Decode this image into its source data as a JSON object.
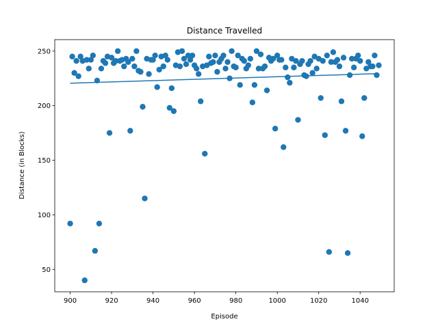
{
  "chart_data": {
    "type": "scatter",
    "title": "Distance Travelled",
    "x_label": "Episode",
    "y_label": "Distance (in Blocks)",
    "color": "#1f77b4",
    "x": [
      900,
      901,
      902,
      903,
      904,
      905,
      906,
      907,
      908,
      909,
      910,
      911,
      912,
      913,
      914,
      915,
      916,
      917,
      918,
      919,
      920,
      921,
      922,
      923,
      924,
      925,
      926,
      927,
      928,
      929,
      930,
      931,
      932,
      933,
      934,
      935,
      936,
      937,
      938,
      939,
      940,
      941,
      942,
      943,
      944,
      945,
      946,
      947,
      948,
      949,
      950,
      951,
      952,
      953,
      954,
      955,
      956,
      957,
      958,
      959,
      960,
      961,
      962,
      963,
      964,
      965,
      966,
      967,
      968,
      969,
      970,
      971,
      972,
      973,
      974,
      975,
      976,
      977,
      978,
      979,
      980,
      981,
      982,
      983,
      984,
      985,
      986,
      987,
      988,
      989,
      990,
      991,
      992,
      993,
      994,
      995,
      996,
      997,
      998,
      999,
      1000,
      1001,
      1002,
      1003,
      1004,
      1005,
      1006,
      1007,
      1008,
      1009,
      1010,
      1011,
      1012,
      1013,
      1014,
      1015,
      1016,
      1017,
      1018,
      1019,
      1020,
      1021,
      1022,
      1023,
      1024,
      1025,
      1026,
      1027,
      1028,
      1029,
      1030,
      1031,
      1032,
      1033,
      1034,
      1035,
      1036,
      1037,
      1038,
      1039,
      1040,
      1041,
      1042,
      1043,
      1044,
      1045,
      1046,
      1047,
      1048,
      1049
    ],
    "values": [
      92,
      245,
      230,
      241,
      227,
      245,
      241,
      40,
      242,
      234,
      242,
      246,
      67,
      223,
      92,
      234,
      241,
      239,
      245,
      175,
      244,
      239,
      241,
      250,
      241,
      242,
      236,
      243,
      240,
      177,
      243,
      236,
      250,
      232,
      231,
      199,
      115,
      243,
      229,
      242,
      242,
      246,
      217,
      233,
      245,
      236,
      246,
      242,
      198,
      216,
      195,
      237,
      249,
      236,
      250,
      243,
      238,
      246,
      242,
      246,
      237,
      234,
      229,
      204,
      236,
      156,
      237,
      245,
      239,
      240,
      246,
      231,
      240,
      243,
      246,
      234,
      240,
      225,
      250,
      236,
      235,
      246,
      219,
      243,
      241,
      234,
      237,
      243,
      203,
      219,
      250,
      234,
      247,
      234,
      236,
      214,
      244,
      241,
      243,
      179,
      246,
      242,
      242,
      162,
      235,
      226,
      221,
      243,
      235,
      241,
      187,
      238,
      241,
      228,
      227,
      238,
      241,
      230,
      245,
      234,
      243,
      207,
      241,
      173,
      246,
      66,
      240,
      249,
      240,
      242,
      236,
      204,
      244,
      177,
      65,
      228,
      243,
      235,
      243,
      246,
      241,
      172,
      207,
      234,
      240,
      236,
      236,
      246,
      228,
      237
    ],
    "trend": {
      "x": [
        900,
        1049
      ],
      "values": [
        220.6,
        229.4
      ]
    },
    "xlim": [
      892.55,
      1056.45
    ],
    "ylim": [
      29.5,
      260.5
    ],
    "xticks": [
      900,
      920,
      940,
      960,
      980,
      1000,
      1020,
      1040
    ],
    "yticks": [
      50,
      100,
      150,
      200,
      250
    ]
  }
}
